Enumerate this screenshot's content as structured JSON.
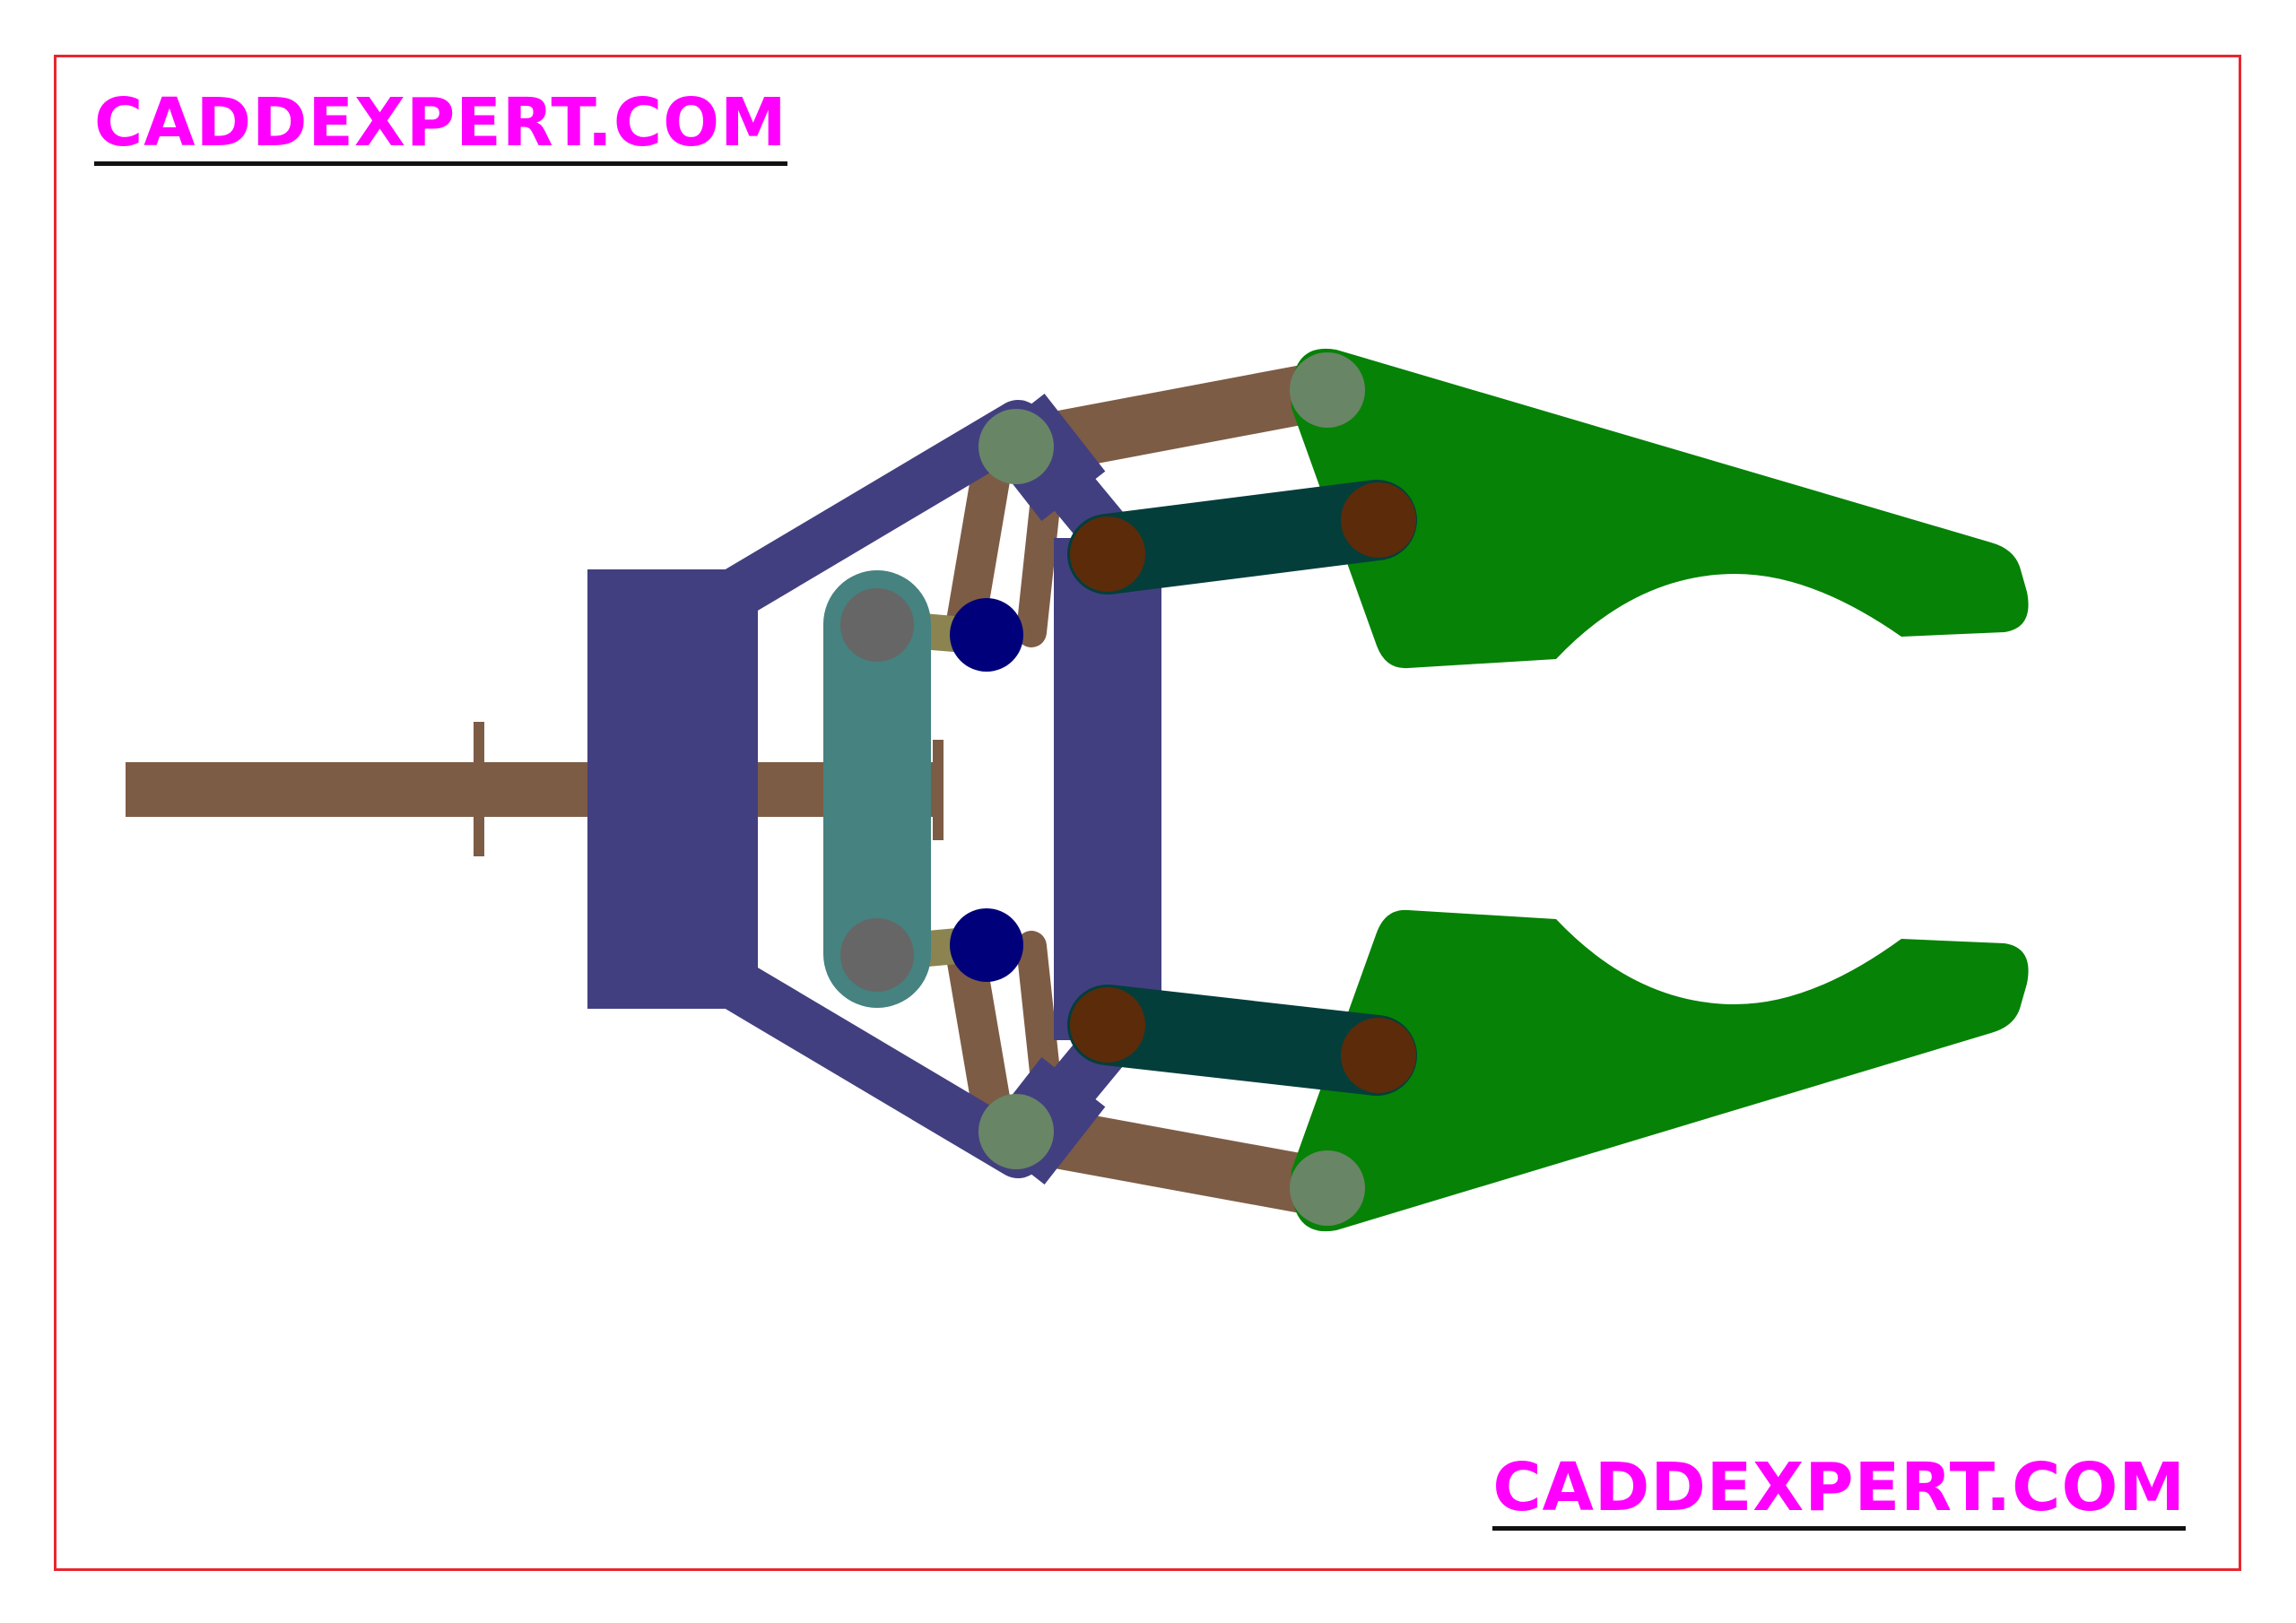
{
  "watermarks": {
    "top_text": "CADDEXPERT.COM",
    "bottom_text": "CADDEXPERT.COM"
  },
  "colors": {
    "border": "#e8262f",
    "watermark_text": "#ff00ff",
    "watermark_underline": "#111111",
    "rod": "#7d5c45",
    "frame": "#423f80",
    "slider": "#458280",
    "slider_pin": "#666666",
    "short_link": "#8c8450",
    "actuator_pin": "#00007a",
    "pivot_pin": "#688566",
    "jaw": "#068206",
    "cylinder": "#033e3b",
    "cylinder_pin": "#5c2b0a"
  }
}
